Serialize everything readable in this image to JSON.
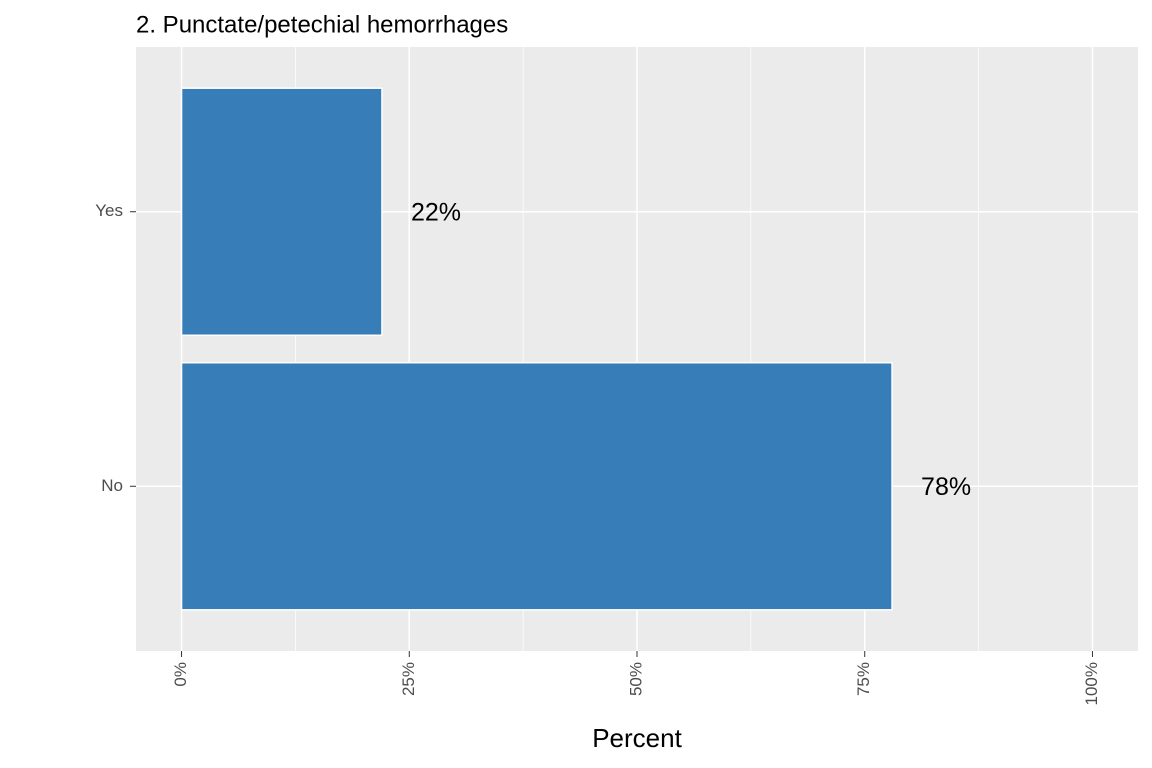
{
  "chart_data": {
    "type": "bar",
    "orientation": "horizontal",
    "title": "2. Punctate/petechial hemorrhages",
    "x_label": "Percent",
    "categories": [
      "Yes",
      "No"
    ],
    "values": [
      22,
      78
    ],
    "value_labels": [
      "22%",
      "78%"
    ],
    "color": "#377eb8",
    "xlim": [
      -5,
      105
    ],
    "xticks": [
      {
        "value": 0,
        "label": "0%"
      },
      {
        "value": 25,
        "label": "25%"
      },
      {
        "value": 50,
        "label": "50%"
      },
      {
        "value": 75,
        "label": "75%"
      },
      {
        "value": 100,
        "label": "100%"
      }
    ],
    "grid": true
  }
}
